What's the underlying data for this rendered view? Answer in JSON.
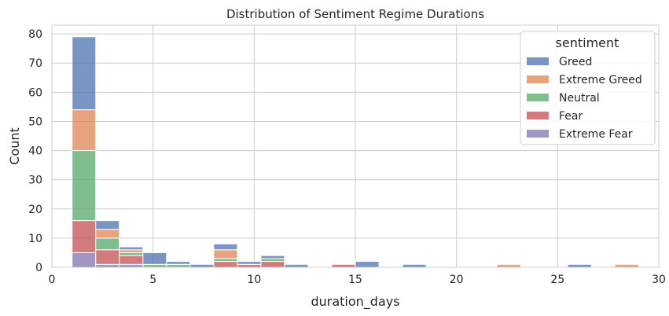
{
  "chart_data": {
    "type": "bar",
    "subtype": "stacked-histogram",
    "title": "Distribution of Sentiment Regime Durations",
    "xlabel": "duration_days",
    "ylabel": "Count",
    "xlim": [
      0,
      30
    ],
    "ylim": [
      0,
      83
    ],
    "xticks": [
      0,
      5,
      10,
      15,
      20,
      25,
      30
    ],
    "yticks": [
      0,
      10,
      20,
      30,
      40,
      50,
      60,
      70,
      80
    ],
    "grid": true,
    "bin_edges": [
      1,
      2.167,
      3.333,
      4.5,
      5.667,
      6.833,
      8,
      9.167,
      10.333,
      11.5,
      12.667,
      13.833,
      15,
      16.167,
      17.333,
      18.5,
      19.667,
      20.833,
      22,
      23.167,
      24.333,
      25.5,
      26.667,
      27.833,
      29
    ],
    "legend": {
      "title": "sentiment",
      "position": "top-right"
    },
    "series": [
      {
        "name": "Extreme Fear",
        "color": "#8172b3",
        "values": [
          5,
          1,
          1,
          0,
          0,
          0,
          0,
          0,
          0,
          0,
          0,
          0,
          0,
          0,
          0,
          0,
          0,
          0,
          0,
          0,
          0,
          0,
          0,
          0
        ]
      },
      {
        "name": "Fear",
        "color": "#c44e52",
        "values": [
          11,
          5,
          3,
          0,
          0,
          0,
          2,
          1,
          2,
          0,
          0,
          1,
          0,
          0,
          0,
          0,
          0,
          0,
          0,
          0,
          0,
          0,
          0,
          0
        ]
      },
      {
        "name": "Neutral",
        "color": "#55a868",
        "values": [
          24,
          4,
          1,
          1,
          1,
          0,
          1,
          0,
          1,
          0,
          0,
          0,
          0,
          0,
          0,
          0,
          0,
          0,
          0,
          0,
          0,
          0,
          0,
          0
        ]
      },
      {
        "name": "Extreme Greed",
        "color": "#dd8452",
        "values": [
          14,
          3,
          1,
          0,
          0,
          0,
          3,
          0,
          0,
          0,
          0,
          0,
          0,
          0,
          0,
          0,
          0,
          0,
          1,
          0,
          0,
          0,
          0,
          1
        ]
      },
      {
        "name": "Greed",
        "color": "#4c72b0",
        "values": [
          25,
          3,
          1,
          4,
          1,
          1,
          2,
          1,
          1,
          1,
          0,
          0,
          2,
          0,
          1,
          0,
          0,
          0,
          0,
          0,
          0,
          1,
          0,
          0
        ]
      }
    ],
    "legend_order": [
      "Greed",
      "Extreme Greed",
      "Neutral",
      "Fear",
      "Extreme Fear"
    ]
  }
}
